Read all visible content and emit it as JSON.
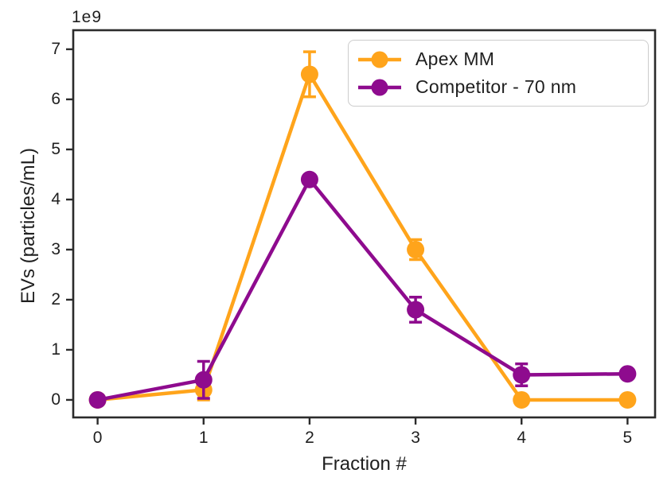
{
  "chart_data": {
    "type": "line",
    "title": "",
    "xlabel": "Fraction #",
    "ylabel": "EVs (particles/mL)",
    "y_offset_label": "1e9",
    "xticks": [
      "0",
      "1",
      "2",
      "3",
      "4",
      "5"
    ],
    "yticks": [
      "0",
      "1",
      "2",
      "3",
      "4",
      "5",
      "6",
      "7"
    ],
    "xlim": [
      -0.23,
      5.26
    ],
    "ylim": [
      -0.35,
      7.38
    ],
    "grid": false,
    "legend_position": "upper-right",
    "axis_color": "#2b2b2b",
    "text_color": "#1f1f1f",
    "background_color": "#ffffff",
    "series": [
      {
        "name": "Apex MM",
        "color": "#FFA41B",
        "x": [
          0,
          1,
          2,
          3,
          4,
          5
        ],
        "values": [
          0.0,
          0.2,
          6.5,
          3.0,
          0.0,
          0.0
        ],
        "errors": [
          0,
          0.2,
          0.45,
          0.2,
          0,
          0
        ]
      },
      {
        "name": "Competitor - 70 nm",
        "color": "#8E0B8E",
        "x": [
          0,
          1,
          2,
          3,
          4,
          5
        ],
        "values": [
          0.0,
          0.4,
          4.4,
          1.8,
          0.5,
          0.52
        ],
        "errors": [
          0,
          0.37,
          0,
          0.25,
          0.22,
          0
        ]
      }
    ]
  }
}
